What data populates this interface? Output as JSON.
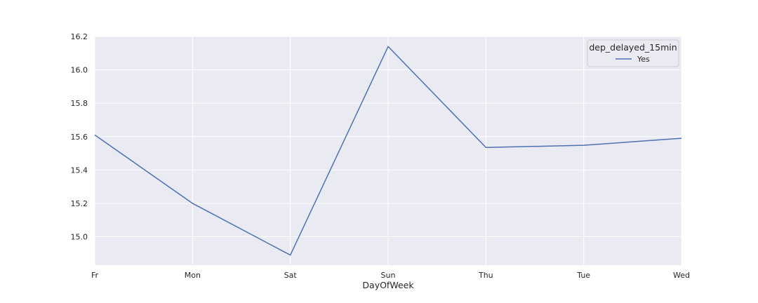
{
  "chart_data": {
    "type": "line",
    "categories": [
      "Fr",
      "Mon",
      "Sat",
      "Sun",
      "Thu",
      "Tue",
      "Wed"
    ],
    "series": [
      {
        "name": "Yes",
        "values": [
          15.61,
          15.2,
          14.89,
          16.14,
          15.535,
          15.548,
          15.59
        ]
      }
    ],
    "xlabel": "DayOfWeek",
    "ylabel": "",
    "ylim": [
      14.83,
      16.2
    ],
    "yticks": [
      15.0,
      15.2,
      15.4,
      15.6,
      15.8,
      16.0,
      16.2
    ],
    "ytick_labels": [
      "15.0",
      "15.2",
      "15.4",
      "15.6",
      "15.8",
      "16.0",
      "16.2"
    ],
    "grid": true,
    "legend": {
      "title": "dep_delayed_15min",
      "placement": "top-right"
    },
    "colors": {
      "background": "#eaeaf2",
      "grid": "#ffffff",
      "series": "#4c72b0"
    }
  }
}
